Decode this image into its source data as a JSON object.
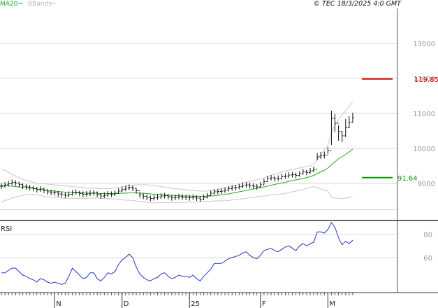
{
  "header": {
    "ma_label": "MA20",
    "bb_label": "BBands",
    "copyright": "© TEC 18/3/2025 4:0 GMT"
  },
  "colors": {
    "ma": "#22aa22",
    "bbands": "#c8c8c8",
    "price": "#111111",
    "rsi": "#2233cc",
    "resistance": "#cc0000",
    "support": "#009900",
    "grid": "#d8d8d8",
    "axis": "#555555"
  },
  "chart_data": [
    {
      "type": "ohlc",
      "title": "",
      "ylim": [
        80,
        140
      ],
      "yticks": [
        {
          "value": 90,
          "label": "9000"
        },
        {
          "value": 100,
          "label": "10000"
        },
        {
          "value": 110,
          "label": "11000"
        },
        {
          "value": 120,
          "label": "12000"
        },
        {
          "value": 130,
          "label": "13000"
        }
      ],
      "price_lines": [
        {
          "name": "resistance",
          "value": 119.85,
          "label": "119.85"
        },
        {
          "name": "support",
          "value": 91.64,
          "label": "91.64"
        }
      ],
      "n_bars": 100,
      "x_labels": [
        {
          "index": 15,
          "label": "N"
        },
        {
          "index": 34,
          "label": "D"
        },
        {
          "index": 53,
          "label": "25"
        },
        {
          "index": 73,
          "label": "F"
        },
        {
          "index": 92,
          "label": "M"
        }
      ],
      "close": [
        89.2,
        89.6,
        89.9,
        90.3,
        90.1,
        89.7,
        89.2,
        89.0,
        88.8,
        88.5,
        88.2,
        88.4,
        88.0,
        87.6,
        87.4,
        87.3,
        87.0,
        86.8,
        86.6,
        86.9,
        87.3,
        87.5,
        87.1,
        86.9,
        87.0,
        87.2,
        87.3,
        86.9,
        86.4,
        86.6,
        87.0,
        86.9,
        87.2,
        87.8,
        88.3,
        88.6,
        88.9,
        88.6,
        87.9,
        86.7,
        86.3,
        86.0,
        85.7,
        85.9,
        86.1,
        86.4,
        86.5,
        86.2,
        85.9,
        86.0,
        86.2,
        86.1,
        86.0,
        85.9,
        86.1,
        85.8,
        85.5,
        86.0,
        86.5,
        87.2,
        87.6,
        87.7,
        87.8,
        88.1,
        88.5,
        88.7,
        88.8,
        89.1,
        89.5,
        89.6,
        89.4,
        89.2,
        89.0,
        89.6,
        90.5,
        91.4,
        91.6,
        91.3,
        91.5,
        91.9,
        92.1,
        92.4,
        92.5,
        92.3,
        92.7,
        93.3,
        93.1,
        93.6,
        94.0,
        97.6,
        98.0,
        98.1,
        99.4,
        108.6,
        107.2,
        104.8,
        103.6,
        105.9,
        107.4,
        108.8
      ],
      "high": [
        90.0,
        90.4,
        90.7,
        91.1,
        90.9,
        90.5,
        90.0,
        89.8,
        89.6,
        89.3,
        89.0,
        89.2,
        88.8,
        88.4,
        88.2,
        88.1,
        87.8,
        87.6,
        87.4,
        87.7,
        88.1,
        88.3,
        87.9,
        87.7,
        87.8,
        88.0,
        88.1,
        87.7,
        87.2,
        87.4,
        87.8,
        87.7,
        88.0,
        88.6,
        89.1,
        89.4,
        89.7,
        89.4,
        88.7,
        87.5,
        87.1,
        86.8,
        86.5,
        86.7,
        86.9,
        87.2,
        87.3,
        87.0,
        86.7,
        86.8,
        87.0,
        86.9,
        86.8,
        86.7,
        86.9,
        86.6,
        86.3,
        86.8,
        87.3,
        88.0,
        88.4,
        88.5,
        88.6,
        88.9,
        89.3,
        89.5,
        89.6,
        89.9,
        90.3,
        90.4,
        90.2,
        90.0,
        89.8,
        90.4,
        91.3,
        92.2,
        92.4,
        92.1,
        92.3,
        92.7,
        92.9,
        93.2,
        93.3,
        93.1,
        93.5,
        94.1,
        93.9,
        94.4,
        94.8,
        98.6,
        99.0,
        99.1,
        100.4,
        110.8,
        109.8,
        106.6,
        105.0,
        108.4,
        109.2,
        110.2
      ],
      "low": [
        88.4,
        88.8,
        89.1,
        89.5,
        89.3,
        88.9,
        88.4,
        88.2,
        88.0,
        87.7,
        87.4,
        87.6,
        87.2,
        86.8,
        86.6,
        86.5,
        86.2,
        86.0,
        85.8,
        86.1,
        86.5,
        86.7,
        86.3,
        86.1,
        86.2,
        86.4,
        86.5,
        86.1,
        85.6,
        85.8,
        86.2,
        86.1,
        86.4,
        87.0,
        87.5,
        87.8,
        88.1,
        87.8,
        87.1,
        85.9,
        85.5,
        85.2,
        84.9,
        85.1,
        85.3,
        85.6,
        85.7,
        85.4,
        85.1,
        85.2,
        85.4,
        85.3,
        85.2,
        85.1,
        85.3,
        85.0,
        84.7,
        85.2,
        85.7,
        86.4,
        86.8,
        86.9,
        87.0,
        87.3,
        87.7,
        87.9,
        88.0,
        88.3,
        88.7,
        88.8,
        88.6,
        88.4,
        88.2,
        88.8,
        89.7,
        90.6,
        90.8,
        90.5,
        90.7,
        91.1,
        91.3,
        91.6,
        91.7,
        91.5,
        91.9,
        92.5,
        92.3,
        92.8,
        93.2,
        96.6,
        97.0,
        97.1,
        98.4,
        101.0,
        104.6,
        102.2,
        101.8,
        103.2,
        105.8,
        107.4
      ],
      "ma20": [
        89.4,
        89.4,
        89.3,
        89.2,
        89.1,
        89.0,
        88.9,
        88.8,
        88.7,
        88.6,
        88.4,
        88.3,
        88.1,
        88.0,
        87.9,
        87.8,
        87.7,
        87.6,
        87.5,
        87.5,
        87.4,
        87.4,
        87.3,
        87.3,
        87.2,
        87.2,
        87.2,
        87.2,
        87.1,
        87.1,
        87.1,
        87.1,
        87.1,
        87.1,
        87.2,
        87.2,
        87.3,
        87.3,
        87.3,
        87.2,
        87.2,
        87.1,
        87.0,
        86.9,
        86.9,
        86.8,
        86.7,
        86.6,
        86.6,
        86.5,
        86.5,
        86.4,
        86.4,
        86.4,
        86.3,
        86.3,
        86.3,
        86.3,
        86.3,
        86.4,
        86.5,
        86.6,
        86.7,
        86.9,
        87.0,
        87.2,
        87.4,
        87.6,
        87.8,
        88.0,
        88.2,
        88.4,
        88.6,
        88.8,
        89.0,
        89.2,
        89.5,
        89.7,
        89.9,
        90.1,
        90.3,
        90.6,
        90.8,
        91.0,
        91.2,
        91.4,
        91.7,
        91.9,
        92.3,
        92.8,
        93.3,
        93.8,
        94.4,
        95.3,
        96.2,
        97.0,
        97.6,
        98.3,
        99.0,
        99.8
      ],
      "bb_upper": [
        94.2,
        93.7,
        93.2,
        92.6,
        92.1,
        91.6,
        91.2,
        90.8,
        90.5,
        90.3,
        90.1,
        90.0,
        89.9,
        89.8,
        89.7,
        89.6,
        89.5,
        89.4,
        89.3,
        89.2,
        89.1,
        89.0,
        88.9,
        88.8,
        88.7,
        88.6,
        88.6,
        88.5,
        88.5,
        88.5,
        88.5,
        88.6,
        88.7,
        88.8,
        89.0,
        89.2,
        89.4,
        89.5,
        89.6,
        89.6,
        89.6,
        89.6,
        89.5,
        89.4,
        89.3,
        89.1,
        88.9,
        88.8,
        88.6,
        88.5,
        88.4,
        88.3,
        88.2,
        88.1,
        88.0,
        87.9,
        87.8,
        87.8,
        87.8,
        87.9,
        88.0,
        88.2,
        88.4,
        88.6,
        88.9,
        89.1,
        89.4,
        89.7,
        90.0,
        90.3,
        90.5,
        90.8,
        91.0,
        91.3,
        91.6,
        91.9,
        92.3,
        92.6,
        92.9,
        93.2,
        93.5,
        93.8,
        94.0,
        94.2,
        94.4,
        94.6,
        94.8,
        95.0,
        95.5,
        96.8,
        98.2,
        99.6,
        101.0,
        104.5,
        106.6,
        108.2,
        109.6,
        110.8,
        112.0,
        113.4
      ],
      "bb_lower": [
        84.6,
        85.1,
        85.4,
        85.8,
        86.1,
        86.4,
        86.6,
        86.8,
        86.9,
        86.9,
        86.7,
        86.6,
        86.3,
        86.2,
        86.1,
        86.0,
        85.9,
        85.8,
        85.7,
        85.8,
        85.7,
        85.8,
        85.7,
        85.8,
        85.7,
        85.8,
        85.8,
        85.9,
        85.7,
        85.7,
        85.7,
        85.6,
        85.5,
        85.4,
        85.4,
        85.2,
        85.2,
        85.1,
        85.0,
        84.8,
        84.8,
        84.6,
        84.5,
        84.4,
        84.5,
        84.5,
        84.5,
        84.4,
        84.6,
        84.5,
        84.6,
        84.5,
        84.6,
        84.7,
        84.6,
        84.7,
        84.8,
        84.8,
        84.8,
        84.9,
        85.0,
        85.0,
        85.0,
        85.2,
        85.1,
        85.3,
        85.4,
        85.5,
        85.6,
        85.7,
        85.9,
        86.0,
        86.2,
        86.3,
        86.4,
        86.5,
        86.7,
        86.8,
        86.9,
        87.0,
        87.1,
        87.4,
        87.6,
        87.8,
        88.0,
        88.2,
        88.6,
        88.8,
        89.1,
        88.8,
        88.4,
        88.0,
        87.8,
        86.1,
        85.8,
        85.8,
        85.6,
        85.8,
        86.0,
        86.2
      ]
    },
    {
      "type": "line",
      "title": "RSI",
      "ylim": [
        30,
        90
      ],
      "yticks": [
        {
          "value": 60,
          "label": "60"
        },
        {
          "value": 80,
          "label": "80"
        }
      ],
      "series": [
        {
          "name": "RSI",
          "values": [
            47,
            47,
            49,
            51,
            51,
            48,
            45,
            44,
            42,
            41,
            39,
            42,
            41,
            39,
            38,
            39,
            38,
            37,
            38,
            44,
            51,
            48,
            45,
            42,
            43,
            47,
            47,
            42,
            40,
            43,
            47,
            46,
            48,
            54,
            58,
            60,
            63,
            60,
            52,
            46,
            43,
            41,
            40,
            42,
            43,
            46,
            47,
            44,
            42,
            43,
            45,
            44,
            44,
            43,
            45,
            42,
            40,
            44,
            47,
            50,
            55,
            55,
            55,
            57,
            59,
            60,
            61,
            62,
            64,
            65,
            62,
            60,
            59,
            62,
            66,
            67,
            68,
            66,
            65,
            67,
            69,
            70,
            68,
            66,
            70,
            72,
            70,
            72,
            73,
            82,
            82,
            81,
            84,
            90,
            86,
            77,
            71,
            74,
            72,
            75
          ]
        }
      ]
    }
  ]
}
